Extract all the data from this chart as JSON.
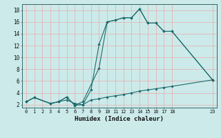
{
  "xlabel": "Humidex (Indice chaleur)",
  "bg_color": "#cceaea",
  "grid_color": "#e8aaaa",
  "line_color": "#1a6b6b",
  "xlim": [
    -0.5,
    23.5
  ],
  "ylim": [
    1.5,
    19.0
  ],
  "xtick_labels": [
    "0",
    "1",
    "2",
    "3",
    "4",
    "5",
    "6",
    "7",
    "8",
    "9",
    "10",
    "11",
    "12",
    "13",
    "14",
    "15",
    "16",
    "17",
    "18",
    "",
    "",
    "",
    "",
    "23"
  ],
  "xtick_positions": [
    0,
    1,
    2,
    3,
    4,
    5,
    6,
    7,
    8,
    9,
    10,
    11,
    12,
    13,
    14,
    15,
    16,
    17,
    18,
    19,
    20,
    21,
    22,
    23
  ],
  "yticks": [
    2,
    4,
    6,
    8,
    10,
    12,
    14,
    16,
    18
  ],
  "line1": {
    "x": [
      0,
      1,
      3,
      4,
      5,
      6,
      7,
      9,
      10,
      11,
      12,
      13,
      14,
      15,
      16,
      17,
      18,
      23
    ],
    "y": [
      2.5,
      3.2,
      2.2,
      2.5,
      3.3,
      1.9,
      2.5,
      8.2,
      16.0,
      16.3,
      16.7,
      16.7,
      18.2,
      15.8,
      15.8,
      14.4,
      14.4,
      6.2
    ]
  },
  "line2": {
    "x": [
      0,
      1,
      3,
      4,
      5,
      6,
      7,
      8,
      9,
      10,
      11,
      12,
      13,
      14,
      15,
      16,
      17,
      18,
      23
    ],
    "y": [
      2.5,
      3.2,
      2.2,
      2.5,
      3.3,
      1.9,
      2.0,
      4.5,
      12.2,
      16.0,
      16.3,
      16.7,
      16.7,
      18.2,
      15.8,
      15.8,
      14.4,
      14.4,
      6.2
    ]
  },
  "line3": {
    "x": [
      0,
      1,
      3,
      4,
      5,
      6,
      7,
      8,
      9,
      10,
      11,
      12,
      13,
      14,
      15,
      16,
      17,
      18,
      23
    ],
    "y": [
      2.5,
      3.2,
      2.2,
      2.5,
      2.8,
      2.2,
      2.0,
      2.8,
      3.0,
      3.3,
      3.5,
      3.7,
      4.0,
      4.3,
      4.5,
      4.7,
      4.9,
      5.1,
      6.2
    ]
  }
}
